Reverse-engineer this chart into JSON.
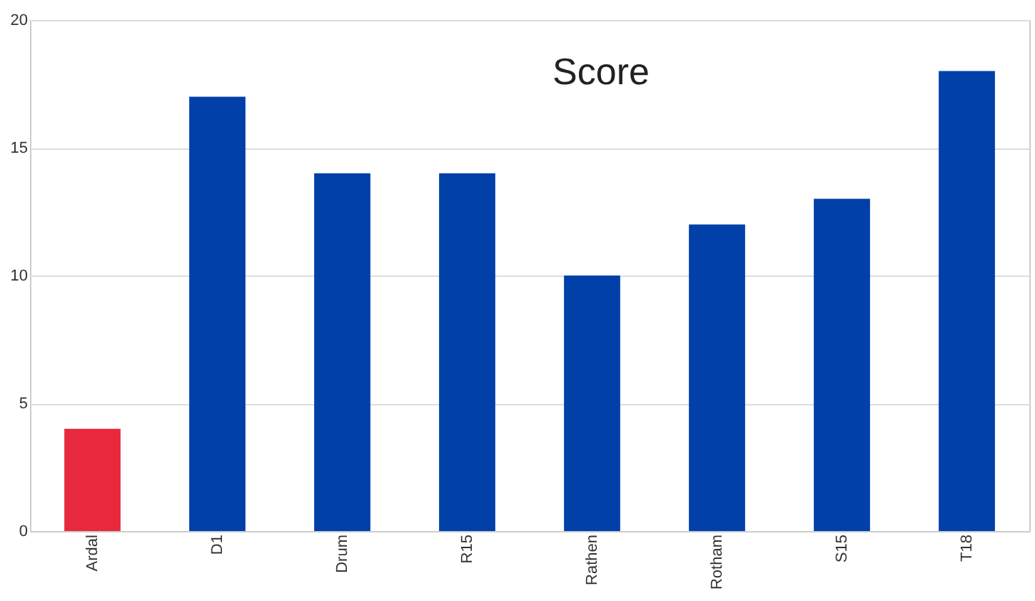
{
  "chart_data": {
    "type": "bar",
    "title": "Score",
    "categories": [
      "Ardal",
      "D1",
      "Drum",
      "R15",
      "Rathen",
      "Rotham",
      "S15",
      "T18"
    ],
    "values": [
      4,
      17,
      14,
      14,
      10,
      12,
      13,
      18
    ],
    "colors": [
      "#e8283c",
      "#0040a8",
      "#0040a8",
      "#0040a8",
      "#0040a8",
      "#0040a8",
      "#0040a8",
      "#0040a8"
    ],
    "ylim": [
      0,
      20
    ],
    "yticks": [
      0,
      5,
      10,
      15,
      20
    ],
    "grid": "y"
  }
}
